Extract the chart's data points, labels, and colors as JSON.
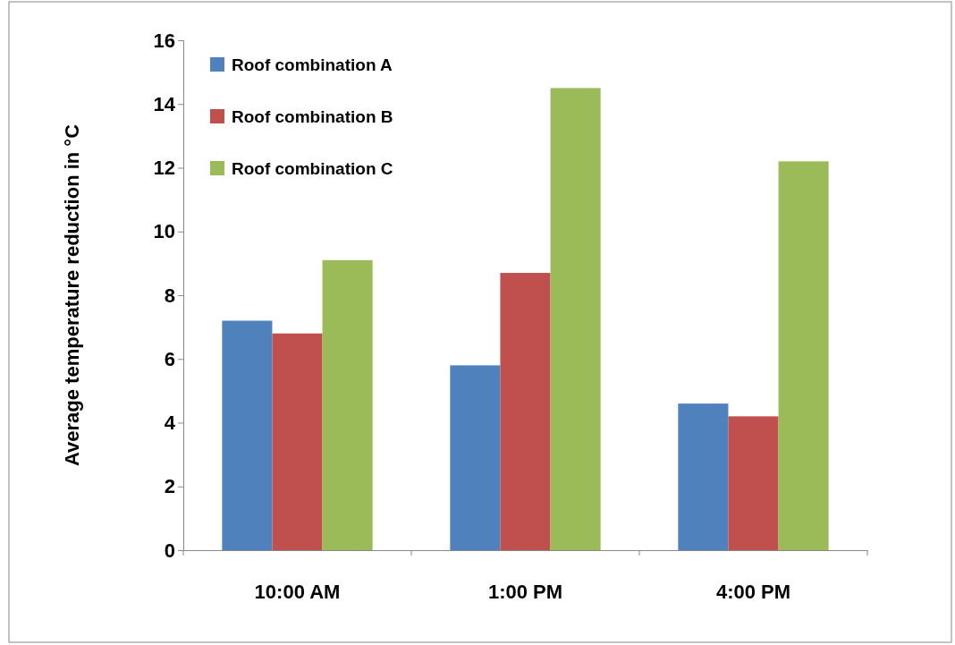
{
  "chart_data": {
    "type": "bar",
    "ylabel": "Average temperature reduction in °C",
    "categories": [
      "10:00 AM",
      "1:00 PM",
      "4:00 PM"
    ],
    "series": [
      {
        "name": "Roof combination A",
        "color": "#4f81bd",
        "values": [
          7.2,
          5.8,
          4.6
        ]
      },
      {
        "name": "Roof combination B",
        "color": "#c0504d",
        "values": [
          6.8,
          8.7,
          4.2
        ]
      },
      {
        "name": "Roof combination C",
        "color": "#9bbb59",
        "values": [
          9.1,
          14.5,
          12.2
        ]
      }
    ],
    "ylim": [
      0,
      16
    ],
    "yticks": [
      0,
      2,
      4,
      6,
      8,
      10,
      12,
      14,
      16
    ],
    "grid": false,
    "legend": "top left"
  }
}
